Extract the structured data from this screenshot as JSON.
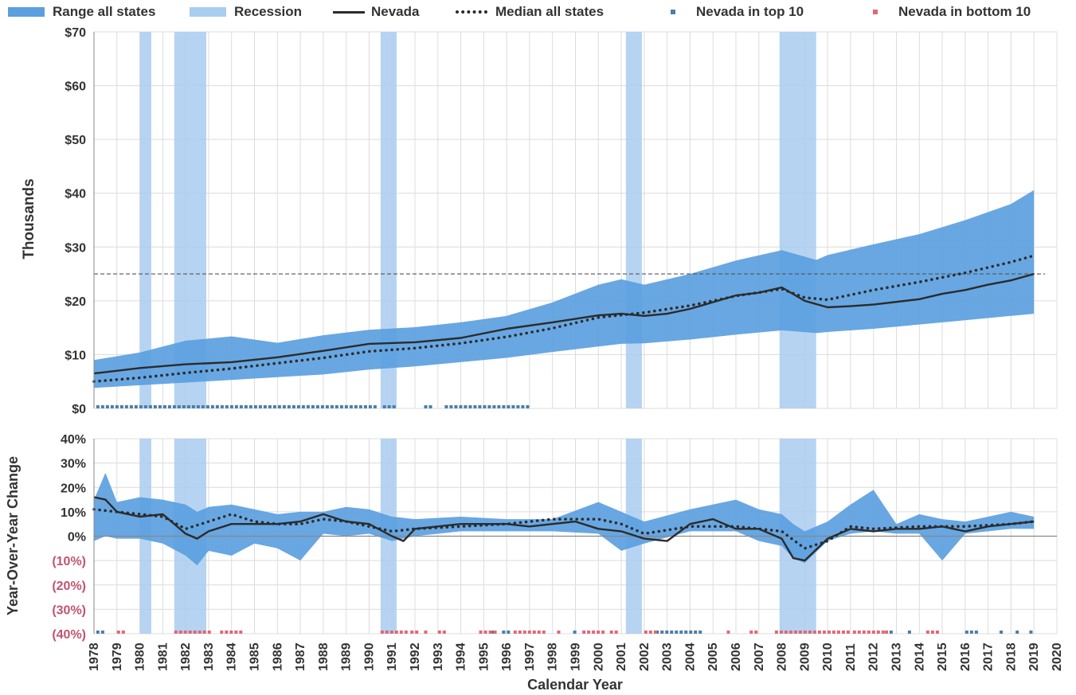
{
  "legend": {
    "range": "Range all states",
    "recession": "Recession",
    "nevada": "Nevada",
    "median": "Median all states",
    "top10": "Nevada in top 10",
    "bottom10": "Nevada in bottom 10"
  },
  "colors": {
    "range": "#5b9fdf",
    "recession": "#a9cdf0",
    "nevada": "#2b2b2b",
    "median": "#2b2b2b",
    "top10": "#4a7fa8",
    "bottom10": "#e06878",
    "negative_label": "#c05470"
  },
  "chart_data": [
    {
      "type": "area",
      "ylabel": "Thousands",
      "xlabel": "",
      "ylim": [
        0,
        70
      ],
      "y_ticks": [
        "$0",
        "$10",
        "$20",
        "$30",
        "$40",
        "$50",
        "$60",
        "$70"
      ],
      "xlim": [
        1978,
        2020
      ],
      "recessions": [
        [
          1980.0,
          1980.5
        ],
        [
          1981.5,
          1982.9
        ],
        [
          1990.5,
          1991.2
        ],
        [
          2001.2,
          2001.9
        ],
        [
          2007.9,
          2009.5
        ]
      ],
      "reference_line": 25,
      "series": [
        {
          "name": "Range all states",
          "x": [
            1978,
            1980,
            1982,
            1984,
            1986,
            1988,
            1990,
            1992,
            1994,
            1996,
            1998,
            2000,
            2001,
            2002,
            2004,
            2006,
            2008,
            2009.5,
            2010,
            2012,
            2014,
            2016,
            2018,
            2019
          ],
          "low": [
            3.8,
            4.3,
            4.8,
            5.3,
            5.8,
            6.3,
            7.2,
            7.8,
            8.6,
            9.4,
            10.5,
            11.5,
            12.0,
            12.1,
            12.8,
            13.7,
            14.5,
            14.0,
            14.2,
            14.8,
            15.6,
            16.4,
            17.2,
            17.6
          ],
          "high": [
            9.0,
            10.4,
            12.6,
            13.4,
            12.2,
            13.6,
            14.6,
            15.1,
            16.0,
            17.2,
            19.7,
            23.0,
            24.0,
            23.0,
            25.0,
            27.5,
            29.4,
            27.6,
            28.5,
            30.5,
            32.4,
            35.0,
            38.0,
            40.6
          ]
        },
        {
          "name": "Nevada",
          "x": [
            1978,
            1980,
            1982,
            1984,
            1986,
            1988,
            1990,
            1992,
            1994,
            1996,
            1998,
            2000,
            2001,
            2002,
            2003,
            2004,
            2006,
            2007,
            2008,
            2009,
            2010,
            2011,
            2012,
            2014,
            2015,
            2016,
            2017,
            2018,
            2019
          ],
          "y": [
            6.5,
            7.5,
            8.2,
            8.6,
            9.5,
            10.7,
            12.0,
            12.3,
            13.1,
            14.8,
            16.0,
            17.3,
            17.6,
            17.2,
            17.6,
            18.5,
            21.0,
            21.5,
            22.5,
            20.0,
            18.8,
            19.0,
            19.3,
            20.3,
            21.3,
            22.0,
            23.0,
            23.8,
            25.0
          ]
        },
        {
          "name": "Median all states",
          "x": [
            1978,
            1980,
            1982,
            1984,
            1986,
            1988,
            1990,
            1992,
            1994,
            1996,
            1998,
            2000,
            2002,
            2004,
            2006,
            2008,
            2009,
            2010,
            2012,
            2014,
            2016,
            2018,
            2019
          ],
          "y": [
            5.0,
            5.7,
            6.6,
            7.4,
            8.4,
            9.4,
            10.6,
            11.2,
            12.1,
            13.3,
            14.9,
            16.9,
            17.8,
            19.1,
            20.9,
            22.2,
            20.6,
            20.2,
            22.0,
            23.5,
            25.2,
            27.2,
            28.4
          ]
        }
      ],
      "top10_periods": [
        [
          1978.1,
          1990.3
        ],
        [
          1990.6,
          1991.2
        ],
        [
          1992.4,
          1992.8
        ],
        [
          1993.3,
          1996.9
        ]
      ]
    },
    {
      "type": "area",
      "ylabel": "Year-Over-Year Change",
      "xlabel": "Calendar Year",
      "ylim": [
        -40,
        40
      ],
      "y_ticks": [
        "40%",
        "30%",
        "20%",
        "10%",
        "0%",
        "(10%)",
        "(20%)",
        "(30%)",
        "(40%)"
      ],
      "x_ticks": [
        "1978",
        "1979",
        "1980",
        "1981",
        "1982",
        "1983",
        "1984",
        "1985",
        "1986",
        "1987",
        "1988",
        "1989",
        "1990",
        "1991",
        "1992",
        "1993",
        "1994",
        "1995",
        "1996",
        "1997",
        "1998",
        "1999",
        "2000",
        "2001",
        "2002",
        "2003",
        "2004",
        "2005",
        "2006",
        "2007",
        "2008",
        "2009",
        "2010",
        "2011",
        "2012",
        "2013",
        "2014",
        "2015",
        "2016",
        "2017",
        "2018",
        "2019",
        "2020"
      ],
      "xlim": [
        1978,
        2020
      ],
      "recessions": [
        [
          1980.0,
          1980.5
        ],
        [
          1981.5,
          1982.9
        ],
        [
          1990.5,
          1991.2
        ],
        [
          2001.2,
          2001.9
        ],
        [
          2007.9,
          2009.5
        ]
      ],
      "series": [
        {
          "name": "Range all states",
          "x": [
            1978,
            1978.5,
            1979,
            1980,
            1981,
            1982,
            1982.5,
            1983,
            1984,
            1985,
            1986,
            1987,
            1988,
            1989,
            1990,
            1991,
            1992,
            1994,
            1996,
            1998,
            2000,
            2001,
            2002,
            2004,
            2006,
            2007,
            2008,
            2008.5,
            2009,
            2010,
            2011,
            2012,
            2013,
            2014,
            2015,
            2016,
            2017,
            2018,
            2019
          ],
          "high": [
            15,
            26,
            14,
            16,
            15,
            13,
            10,
            12,
            13,
            11,
            9,
            10,
            10,
            12,
            11,
            8,
            7,
            8,
            7,
            7,
            14,
            10,
            6,
            11,
            15,
            11,
            9,
            5,
            2,
            6,
            13,
            19,
            5,
            9,
            7,
            6,
            8,
            10,
            8
          ],
          "low": [
            -2,
            0,
            -1,
            -1,
            -3,
            -8,
            -12,
            -6,
            -8,
            -3,
            -5,
            -10,
            1,
            0,
            1,
            -2,
            0,
            2,
            2,
            2,
            1,
            -6,
            -3,
            2,
            2,
            -2,
            -4,
            -9,
            -11,
            -2,
            1,
            2,
            1,
            1,
            -10,
            1,
            2,
            3,
            3
          ]
        },
        {
          "name": "Nevada",
          "x": [
            1978,
            1978.5,
            1979,
            1980,
            1981,
            1982,
            1982.5,
            1983,
            1984,
            1985,
            1986,
            1987,
            1988,
            1989,
            1990,
            1991,
            1991.5,
            1992,
            1994,
            1996,
            1997,
            1998,
            1999,
            2000,
            2001,
            2002,
            2003,
            2004,
            2005,
            2006,
            2007,
            2008,
            2008.5,
            2009,
            2010,
            2011,
            2012,
            2013,
            2014,
            2015,
            2016,
            2017,
            2018,
            2019
          ],
          "y": [
            16,
            15,
            10,
            8,
            9,
            1,
            -1,
            2,
            5,
            5,
            5,
            6,
            9,
            6,
            5,
            0,
            -2,
            3,
            5,
            5,
            4,
            5,
            6,
            3,
            2,
            -1,
            -2,
            5,
            7,
            3,
            3,
            -1,
            -9,
            -10,
            -1,
            3,
            2,
            3,
            3,
            4,
            2,
            4,
            5,
            6
          ]
        },
        {
          "name": "Median all states",
          "x": [
            1978,
            1979,
            1980,
            1981,
            1982,
            1983,
            1984,
            1985,
            1986,
            1987,
            1988,
            1989,
            1990,
            1991,
            1992,
            1994,
            1996,
            1998,
            2000,
            2001,
            2002,
            2004,
            2006,
            2007,
            2008,
            2009,
            2010,
            2011,
            2012,
            2014,
            2016,
            2018,
            2019
          ],
          "y": [
            11,
            10,
            9,
            8,
            3,
            6,
            9,
            6,
            5,
            5,
            7,
            6,
            4,
            2,
            3,
            4,
            5,
            7,
            7,
            5,
            1,
            4,
            4,
            3,
            2,
            -5,
            -2,
            4,
            3,
            4,
            4,
            5,
            6
          ]
        }
      ],
      "top10_periods": [
        [
          1978.1,
          1978.4
        ],
        [
          1995.3,
          1995.5
        ],
        [
          1995.8,
          1996.2
        ],
        [
          1998.9,
          1999.1
        ],
        [
          2002.5,
          2004.5
        ],
        [
          2012.7,
          2012.9
        ],
        [
          2013.5,
          2013.7
        ],
        [
          2016.0,
          2016.5
        ],
        [
          2017.5,
          2017.7
        ],
        [
          2018.2,
          2018.4
        ],
        [
          2018.8,
          2019.0
        ]
      ],
      "bottom10_periods": [
        [
          1979.0,
          1979.4
        ],
        [
          1981.5,
          1983.0
        ],
        [
          1983.5,
          1984.4
        ],
        [
          1990.5,
          1991.7
        ],
        [
          1991.8,
          1992.2
        ],
        [
          1992.4,
          1992.6
        ],
        [
          1993.0,
          1993.3
        ],
        [
          1994.8,
          1995.5
        ],
        [
          1996.3,
          1997.7
        ],
        [
          1998.2,
          1998.4
        ],
        [
          1999.3,
          2000.2
        ],
        [
          2000.5,
          2000.9
        ],
        [
          2002.0,
          2002.5
        ],
        [
          2005.6,
          2005.8
        ],
        [
          2006.6,
          2007.0
        ],
        [
          2007.7,
          2011.0
        ],
        [
          2011.1,
          2012.4
        ],
        [
          2012.5,
          2012.7
        ],
        [
          2014.3,
          2014.9
        ]
      ]
    }
  ]
}
